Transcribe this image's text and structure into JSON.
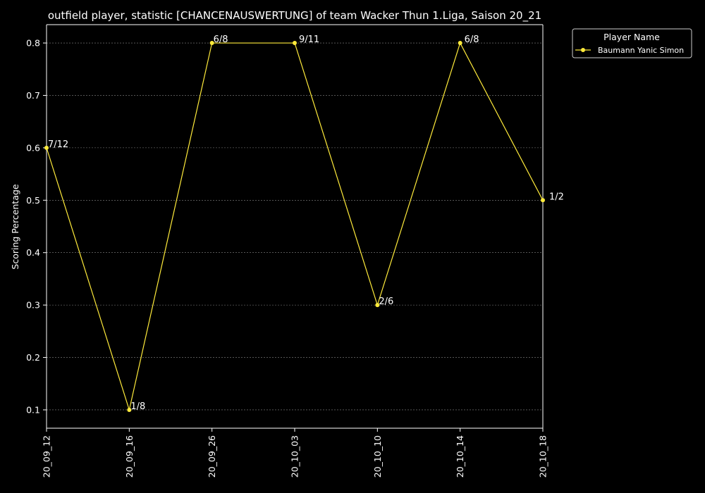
{
  "chart_data": {
    "type": "line",
    "title": "outfield player, statistic [CHANCENAUSWERTUNG] of team Wacker Thun 1.Liga, Saison 20_21",
    "xlabel": "",
    "ylabel": "Scoring Percentage",
    "categories": [
      "20_09_12",
      "20_09_16",
      "20_09_26",
      "20_10_03",
      "20_10_10",
      "20_10_14",
      "20_10_18"
    ],
    "y_ticks": [
      0.1,
      0.2,
      0.3,
      0.4,
      0.5,
      0.6,
      0.7,
      0.8
    ],
    "ylim": [
      0.065,
      0.835
    ],
    "grid": true,
    "legend_position": "top-right outside",
    "legend_title": "Player Name",
    "series": [
      {
        "name": "Baumann Yanic Simon",
        "color": "#ffeb3b",
        "values": [
          0.6,
          0.1,
          0.8,
          0.8,
          0.3,
          0.8,
          0.5
        ],
        "labels": [
          "7/12",
          "1/8",
          "6/8",
          "9/11",
          "2/6",
          "6/8",
          "1/2"
        ]
      }
    ]
  }
}
